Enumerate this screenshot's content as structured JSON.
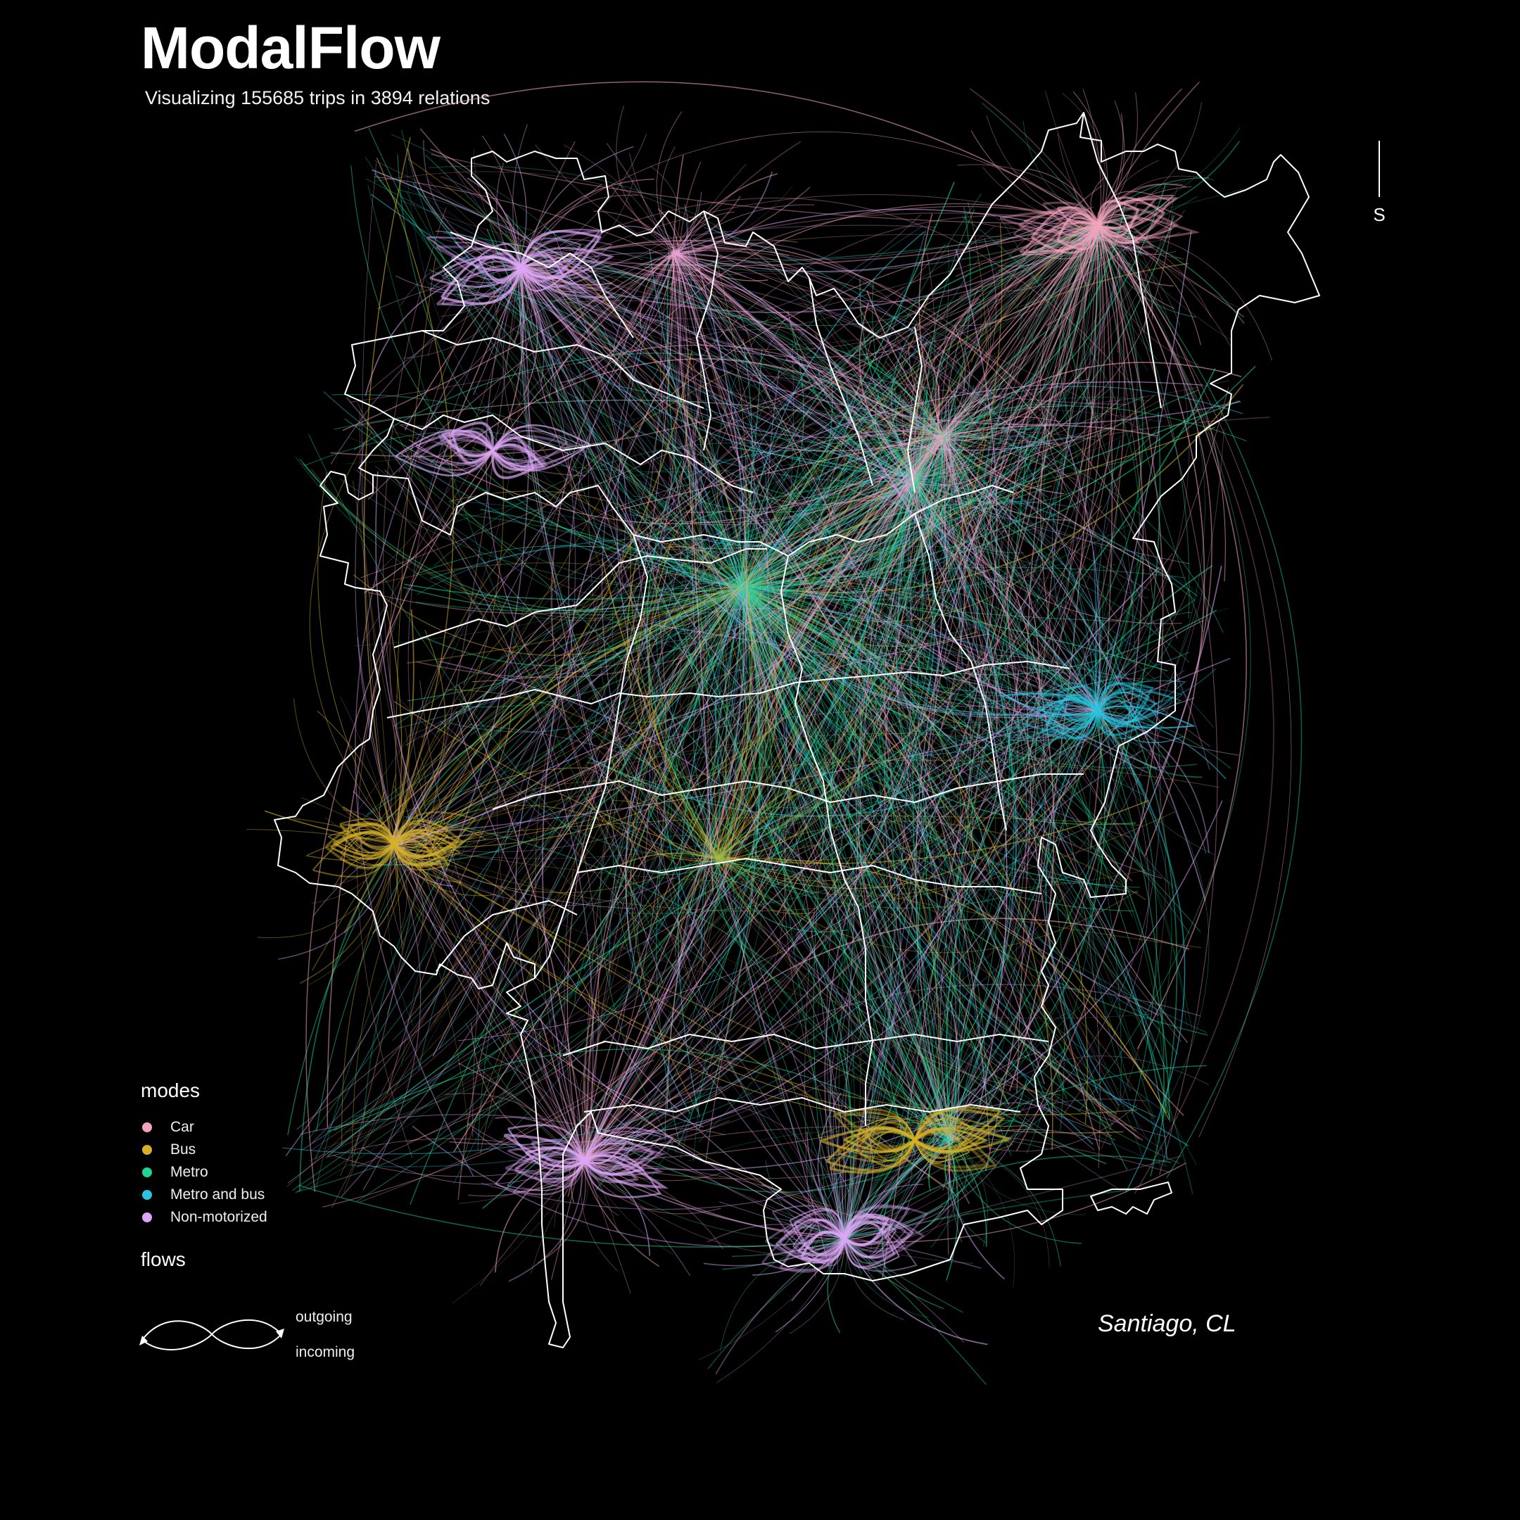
{
  "header": {
    "title": "ModalFlow",
    "subtitle": "Visualizing 155685 trips in 3894 relations"
  },
  "compass": {
    "label": "S"
  },
  "legend": {
    "modes_title": "modes",
    "modes": [
      {
        "label": "Car",
        "color": "#f4a3bd"
      },
      {
        "label": "Bus",
        "color": "#d6b22a"
      },
      {
        "label": "Metro",
        "color": "#1fd494"
      },
      {
        "label": "Metro and bus",
        "color": "#2ac3e0"
      },
      {
        "label": "Non-motorized",
        "color": "#dca6f5"
      }
    ],
    "flows_title": "flows",
    "flows": {
      "outgoing": "outgoing",
      "incoming": "incoming"
    }
  },
  "map": {
    "place": "Santiago, CL",
    "background_color": "#000000",
    "boundary_color": "#ffffff"
  }
}
